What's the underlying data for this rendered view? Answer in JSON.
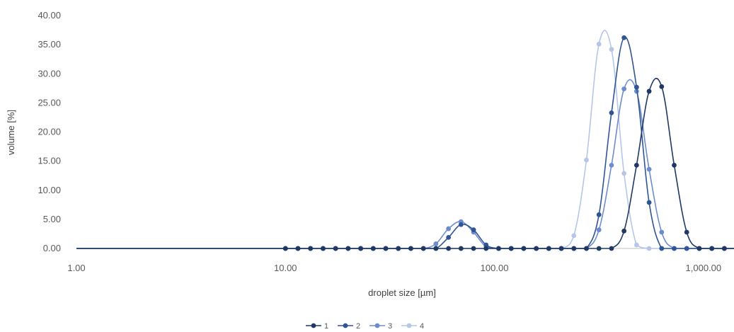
{
  "chart_data": {
    "type": "scatter",
    "title": "",
    "xlabel": "droplet size [µm]",
    "ylabel": "volume [%]",
    "x_scale": "log",
    "xlim": [
      1,
      1400
    ],
    "ylim": [
      0,
      40
    ],
    "x_ticks": [
      1,
      10,
      100,
      1000
    ],
    "x_tick_labels": [
      "1.00",
      "10.00",
      "100.00",
      "1,000.00"
    ],
    "y_ticks": [
      0,
      5,
      10,
      15,
      20,
      25,
      30,
      35,
      40
    ],
    "y_tick_labels": [
      "0.00",
      "5.00",
      "10.00",
      "15.00",
      "20.00",
      "25.00",
      "30.00",
      "35.00",
      "40.00"
    ],
    "grid": false,
    "legend_position": "bottom",
    "x": [
      1.0,
      10.0,
      11.48,
      13.18,
      15.14,
      17.38,
      19.95,
      22.91,
      26.3,
      30.2,
      34.67,
      39.81,
      45.71,
      52.48,
      60.26,
      69.18,
      79.43,
      91.2,
      104.71,
      120.23,
      138.04,
      158.49,
      181.97,
      208.93,
      239.88,
      275.42,
      316.23,
      363.08,
      416.87,
      478.63,
      549.54,
      630.96,
      724.44,
      831.76,
      954.99,
      1096.48,
      1258.93,
      1400.0
    ],
    "series": [
      {
        "name": "1",
        "color": "#203864",
        "values": [
          0,
          0,
          0,
          0,
          0,
          0,
          0,
          0,
          0,
          0,
          0,
          0,
          0,
          0,
          0,
          0,
          0,
          0,
          0,
          0,
          0,
          0,
          0,
          0,
          0,
          0,
          0,
          0,
          3.0,
          14.3,
          27.0,
          27.8,
          14.3,
          2.8,
          0,
          0,
          0,
          0
        ]
      },
      {
        "name": "2",
        "color": "#2F5597",
        "values": [
          0,
          0,
          0,
          0,
          0,
          0,
          0,
          0,
          0,
          0,
          0,
          0,
          0,
          0,
          1.9,
          4.1,
          3.2,
          0.6,
          0,
          0,
          0,
          0,
          0,
          0,
          0,
          0,
          5.8,
          23.3,
          36.2,
          27.7,
          7.9,
          0,
          0,
          0,
          0,
          0,
          0,
          0
        ]
      },
      {
        "name": "3",
        "color": "#6D8CCE",
        "values": [
          0,
          0,
          0,
          0,
          0,
          0,
          0,
          0,
          0,
          0,
          0,
          0,
          0,
          0.8,
          3.4,
          4.6,
          2.8,
          0.3,
          0,
          0,
          0,
          0,
          0,
          0,
          0,
          0,
          3.2,
          14.3,
          27.4,
          27.0,
          13.6,
          2.8,
          0,
          0,
          0,
          0,
          0,
          0
        ]
      },
      {
        "name": "4",
        "color": "#B4C7E7",
        "values": [
          0,
          0,
          0,
          0,
          0,
          0,
          0,
          0,
          0,
          0,
          0,
          0,
          0,
          0,
          0,
          0,
          0,
          0,
          0,
          0,
          0,
          0,
          0,
          0,
          2.2,
          15.2,
          35.1,
          34.2,
          12.9,
          0.6,
          0,
          0,
          0,
          0,
          0,
          0,
          0,
          0
        ]
      }
    ]
  }
}
